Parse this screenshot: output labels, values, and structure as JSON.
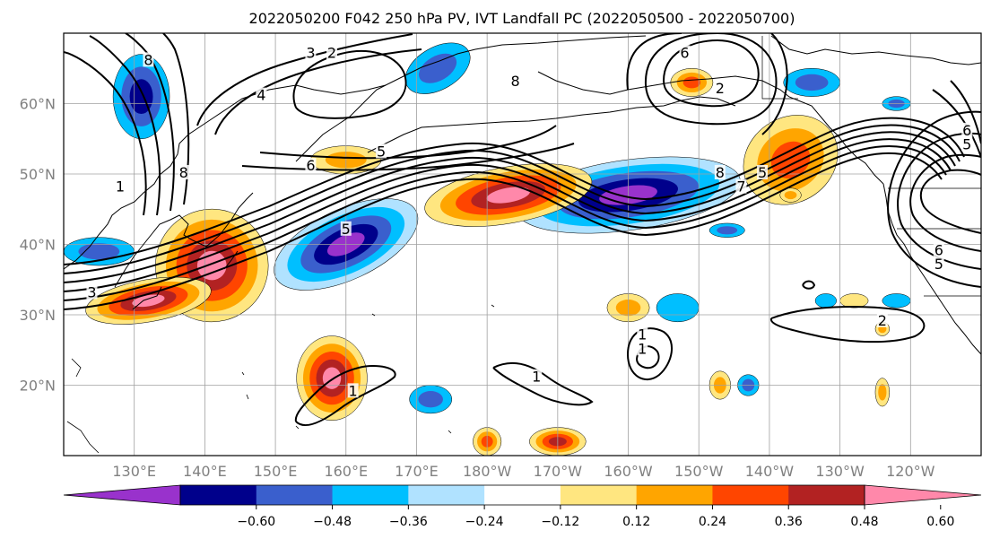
{
  "title": "2022050200 F042 250 hPa PV, IVT Landfall PC (2022050500 - 2022050700)",
  "map": {
    "projection": "PlateCarree",
    "lon_range": [
      120,
      250
    ],
    "lat_range": [
      10,
      70
    ],
    "lat_ticks": [
      {
        "value": 20,
        "label": "20°N"
      },
      {
        "value": 30,
        "label": "30°N"
      },
      {
        "value": 40,
        "label": "40°N"
      },
      {
        "value": 50,
        "label": "50°N"
      },
      {
        "value": 60,
        "label": "60°N"
      }
    ],
    "lon_ticks": [
      {
        "value": 130,
        "label": "130°E"
      },
      {
        "value": 140,
        "label": "140°E"
      },
      {
        "value": 150,
        "label": "150°E"
      },
      {
        "value": 160,
        "label": "160°E"
      },
      {
        "value": 170,
        "label": "170°E"
      },
      {
        "value": 180,
        "label": "180°W"
      },
      {
        "value": 190,
        "label": "170°W"
      },
      {
        "value": 200,
        "label": "160°W"
      },
      {
        "value": 210,
        "label": "150°W"
      },
      {
        "value": 220,
        "label": "140°W"
      },
      {
        "value": 230,
        "label": "130°W"
      },
      {
        "value": 240,
        "label": "120°W"
      }
    ],
    "grid": true,
    "tick_label_color": "#808080"
  },
  "colorbar": {
    "levels": [
      "-0.60",
      "-0.48",
      "-0.36",
      "-0.24",
      "-0.12",
      "0.12",
      "0.24",
      "0.36",
      "0.48",
      "0.60"
    ],
    "colors": [
      "#9932CC",
      "#00008B",
      "#3A5FCD",
      "#00BFFF",
      "#B0E2FF",
      "#FFFFFF",
      "#FFE680",
      "#FFA500",
      "#FF4500",
      "#B22222",
      "#FF88AA"
    ],
    "extend": "both"
  },
  "contour_labels": [
    {
      "text": "8",
      "lon": 132,
      "lat": 66
    },
    {
      "text": "3",
      "lon": 155,
      "lat": 67
    },
    {
      "text": "2",
      "lon": 158,
      "lat": 67
    },
    {
      "text": "4",
      "lon": 148,
      "lat": 61
    },
    {
      "text": "5",
      "lon": 165,
      "lat": 53
    },
    {
      "text": "6",
      "lon": 155,
      "lat": 51
    },
    {
      "text": "8",
      "lon": 137,
      "lat": 50
    },
    {
      "text": "1",
      "lon": 128,
      "lat": 48
    },
    {
      "text": "8",
      "lon": 184,
      "lat": 63
    },
    {
      "text": "6",
      "lon": 208,
      "lat": 67
    },
    {
      "text": "2",
      "lon": 213,
      "lat": 62
    },
    {
      "text": "8",
      "lon": 213,
      "lat": 50
    },
    {
      "text": "7",
      "lon": 216,
      "lat": 48
    },
    {
      "text": "5",
      "lon": 219,
      "lat": 50
    },
    {
      "text": "6",
      "lon": 248,
      "lat": 56
    },
    {
      "text": "5",
      "lon": 248,
      "lat": 54
    },
    {
      "text": "6",
      "lon": 244,
      "lat": 39
    },
    {
      "text": "5",
      "lon": 244,
      "lat": 37
    },
    {
      "text": "3",
      "lon": 124,
      "lat": 33
    },
    {
      "text": "5",
      "lon": 160,
      "lat": 42
    },
    {
      "text": "1",
      "lon": 161,
      "lat": 19
    },
    {
      "text": "1",
      "lon": 187,
      "lat": 21
    },
    {
      "text": "1",
      "lon": 202,
      "lat": 25
    },
    {
      "text": "1",
      "lon": 202,
      "lat": 27
    },
    {
      "text": "2",
      "lon": 236,
      "lat": 29
    }
  ],
  "shading_patches": [
    {
      "lon": 160,
      "lat": 40,
      "rx": 11,
      "ry": 5,
      "rot": -25,
      "levels": [
        4,
        3,
        2,
        1,
        0
      ]
    },
    {
      "lon": 200,
      "lat": 47,
      "rx": 16,
      "ry": 5,
      "rot": -8,
      "levels": [
        4,
        3,
        2,
        1,
        0
      ]
    },
    {
      "lon": 183,
      "lat": 47,
      "rx": 12,
      "ry": 4,
      "rot": -10,
      "levels": [
        6,
        7,
        8,
        9,
        10
      ]
    },
    {
      "lon": 141,
      "lat": 37,
      "rx": 8,
      "ry": 8,
      "rot": -35,
      "levels": [
        6,
        7,
        8,
        9,
        10
      ]
    },
    {
      "lon": 132,
      "lat": 32,
      "rx": 9,
      "ry": 3,
      "rot": -10,
      "levels": [
        6,
        7,
        8,
        9,
        10
      ]
    },
    {
      "lon": 223,
      "lat": 52,
      "rx": 7,
      "ry": 6,
      "rot": -35,
      "levels": [
        6,
        7,
        8
      ]
    },
    {
      "lon": 158,
      "lat": 21,
      "rx": 5,
      "ry": 6,
      "rot": 0,
      "levels": [
        6,
        7,
        8,
        9,
        10
      ]
    },
    {
      "lon": 131,
      "lat": 61,
      "rx": 4,
      "ry": 6,
      "rot": 0,
      "levels": [
        3,
        2,
        1
      ]
    },
    {
      "lon": 173,
      "lat": 65,
      "rx": 5,
      "ry": 3,
      "rot": -30,
      "levels": [
        3,
        2
      ]
    },
    {
      "lon": 226,
      "lat": 63,
      "rx": 4,
      "ry": 2,
      "rot": 0,
      "levels": [
        3,
        2
      ]
    },
    {
      "lon": 209,
      "lat": 63,
      "rx": 3,
      "ry": 2,
      "rot": 0,
      "levels": [
        6,
        7,
        8
      ]
    },
    {
      "lon": 160,
      "lat": 52,
      "rx": 5,
      "ry": 2,
      "rot": 0,
      "levels": [
        6,
        7
      ]
    },
    {
      "lon": 125,
      "lat": 39,
      "rx": 5,
      "ry": 2,
      "rot": 0,
      "levels": [
        3,
        2
      ]
    },
    {
      "lon": 172,
      "lat": 18,
      "rx": 3,
      "ry": 2,
      "rot": 0,
      "levels": [
        3,
        2
      ]
    },
    {
      "lon": 200,
      "lat": 31,
      "rx": 3,
      "ry": 2,
      "rot": 0,
      "levels": [
        6,
        7
      ]
    },
    {
      "lon": 207,
      "lat": 31,
      "rx": 3,
      "ry": 2,
      "rot": 0,
      "levels": [
        3
      ]
    },
    {
      "lon": 190,
      "lat": 12,
      "rx": 4,
      "ry": 2,
      "rot": 0,
      "levels": [
        6,
        7,
        8,
        9
      ]
    },
    {
      "lon": 180,
      "lat": 12,
      "rx": 2,
      "ry": 2,
      "rot": 0,
      "levels": [
        6,
        7,
        8
      ]
    },
    {
      "lon": 213,
      "lat": 20,
      "rx": 1.5,
      "ry": 2,
      "rot": 0,
      "levels": [
        6,
        7
      ]
    },
    {
      "lon": 217,
      "lat": 20,
      "rx": 1.5,
      "ry": 1.5,
      "rot": 0,
      "levels": [
        3,
        2
      ]
    },
    {
      "lon": 228,
      "lat": 32,
      "rx": 1.5,
      "ry": 1,
      "rot": 0,
      "levels": [
        3
      ]
    },
    {
      "lon": 236,
      "lat": 28,
      "rx": 1,
      "ry": 1,
      "rot": 0,
      "levels": [
        6,
        7
      ]
    },
    {
      "lon": 238,
      "lat": 32,
      "rx": 2,
      "ry": 1,
      "rot": 0,
      "levels": [
        3
      ]
    },
    {
      "lon": 236,
      "lat": 19,
      "rx": 1,
      "ry": 2,
      "rot": 0,
      "levels": [
        6,
        7
      ]
    },
    {
      "lon": 214,
      "lat": 42,
      "rx": 2.5,
      "ry": 1,
      "rot": 0,
      "levels": [
        3,
        2
      ]
    },
    {
      "lon": 223,
      "lat": 47,
      "rx": 1.5,
      "ry": 1,
      "rot": 0,
      "levels": [
        6,
        7
      ]
    },
    {
      "lon": 238,
      "lat": 60,
      "rx": 2,
      "ry": 1,
      "rot": 0,
      "levels": [
        3,
        2
      ]
    },
    {
      "lon": 232,
      "lat": 32,
      "rx": 2,
      "ry": 1,
      "rot": 0,
      "levels": [
        6
      ]
    }
  ]
}
